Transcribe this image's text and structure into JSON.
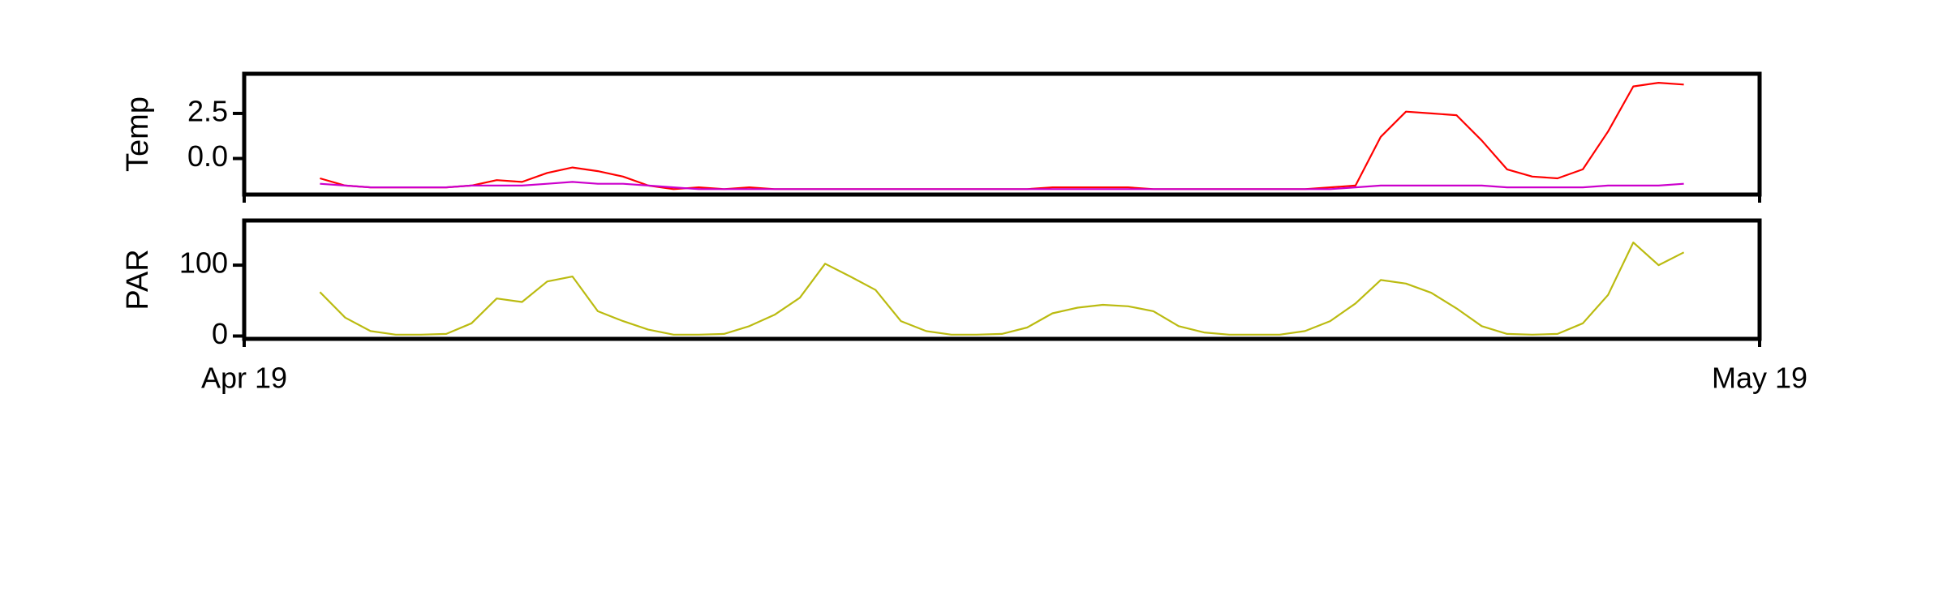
{
  "chart_data": [
    {
      "type": "line",
      "ylabel": "Temp",
      "x": [
        1.5,
        2,
        2.5,
        3,
        3.5,
        4,
        4.5,
        5,
        5.5,
        6,
        6.5,
        7,
        7.5,
        8,
        8.5,
        9,
        9.5,
        10,
        10.5,
        11,
        11.5,
        12,
        12.5,
        13,
        13.5,
        14,
        14.5,
        15,
        15.5,
        16,
        16.5,
        17,
        17.5,
        18,
        18.5,
        19,
        19.5,
        20,
        20.5,
        21,
        21.5,
        22,
        22.5,
        23,
        23.5,
        24,
        24.5,
        25,
        25.5,
        26,
        26.5,
        27,
        27.5,
        28,
        28.5
      ],
      "series": [
        {
          "color": "#ff0000",
          "values": [
            -1.1,
            -1.5,
            -1.6,
            -1.6,
            -1.6,
            -1.6,
            -1.5,
            -1.2,
            -1.3,
            -0.8,
            -0.5,
            -0.7,
            -1.0,
            -1.5,
            -1.7,
            -1.6,
            -1.7,
            -1.6,
            -1.7,
            -1.7,
            -1.7,
            -1.7,
            -1.7,
            -1.7,
            -1.7,
            -1.7,
            -1.7,
            -1.7,
            -1.7,
            -1.6,
            -1.6,
            -1.6,
            -1.6,
            -1.7,
            -1.7,
            -1.7,
            -1.7,
            -1.7,
            -1.7,
            -1.7,
            -1.6,
            -1.5,
            1.2,
            2.6,
            2.5,
            2.4,
            1.0,
            -0.6,
            -1.0,
            -1.1,
            -0.6,
            1.5,
            4.0,
            4.2,
            4.1
          ]
        },
        {
          "color": "#cc00cc",
          "values": [
            -1.4,
            -1.5,
            -1.6,
            -1.6,
            -1.6,
            -1.6,
            -1.5,
            -1.5,
            -1.5,
            -1.4,
            -1.3,
            -1.4,
            -1.4,
            -1.5,
            -1.6,
            -1.7,
            -1.7,
            -1.7,
            -1.7,
            -1.7,
            -1.7,
            -1.7,
            -1.7,
            -1.7,
            -1.7,
            -1.7,
            -1.7,
            -1.7,
            -1.7,
            -1.7,
            -1.7,
            -1.7,
            -1.7,
            -1.7,
            -1.7,
            -1.7,
            -1.7,
            -1.7,
            -1.7,
            -1.7,
            -1.7,
            -1.6,
            -1.5,
            -1.5,
            -1.5,
            -1.5,
            -1.5,
            -1.6,
            -1.6,
            -1.6,
            -1.6,
            -1.5,
            -1.5,
            -1.5,
            -1.4
          ]
        }
      ],
      "ylim": [
        -2.0,
        4.7
      ],
      "yticks": [
        {
          "value": 0,
          "label": "0.0"
        },
        {
          "value": 2.5,
          "label": "2.5"
        }
      ]
    },
    {
      "type": "line",
      "ylabel": "PAR",
      "x": [
        1.5,
        2,
        2.5,
        3,
        3.5,
        4,
        4.5,
        5,
        5.5,
        6,
        6.5,
        7,
        7.5,
        8,
        8.5,
        9,
        9.5,
        10,
        10.5,
        11,
        11.5,
        12,
        12.5,
        13,
        13.5,
        14,
        14.5,
        15,
        15.5,
        16,
        16.5,
        17,
        17.5,
        18,
        18.5,
        19,
        19.5,
        20,
        20.5,
        21,
        21.5,
        22,
        22.5,
        23,
        23.5,
        24,
        24.5,
        25,
        25.5,
        26,
        26.5,
        27,
        27.5,
        28,
        28.5
      ],
      "series": [
        {
          "color": "#bbbb11",
          "values": [
            62,
            26,
            7,
            2,
            2,
            3,
            18,
            53,
            48,
            77,
            84,
            35,
            21,
            9,
            2,
            2,
            3,
            14,
            30,
            54,
            102,
            84,
            65,
            21,
            7,
            2,
            2,
            3,
            12,
            32,
            40,
            44,
            42,
            35,
            14,
            5,
            2,
            2,
            2,
            7,
            21,
            46,
            79,
            74,
            61,
            39,
            14,
            3,
            2,
            3,
            18,
            58,
            132,
            100,
            118
          ]
        }
      ],
      "ylim": [
        -4,
        163
      ],
      "yticks": [
        0,
        100
      ],
      "xlim": [
        0,
        30
      ],
      "xticks": [
        {
          "value": 0,
          "label": "Apr 19"
        },
        {
          "value": 30,
          "label": "May 19"
        }
      ]
    }
  ]
}
